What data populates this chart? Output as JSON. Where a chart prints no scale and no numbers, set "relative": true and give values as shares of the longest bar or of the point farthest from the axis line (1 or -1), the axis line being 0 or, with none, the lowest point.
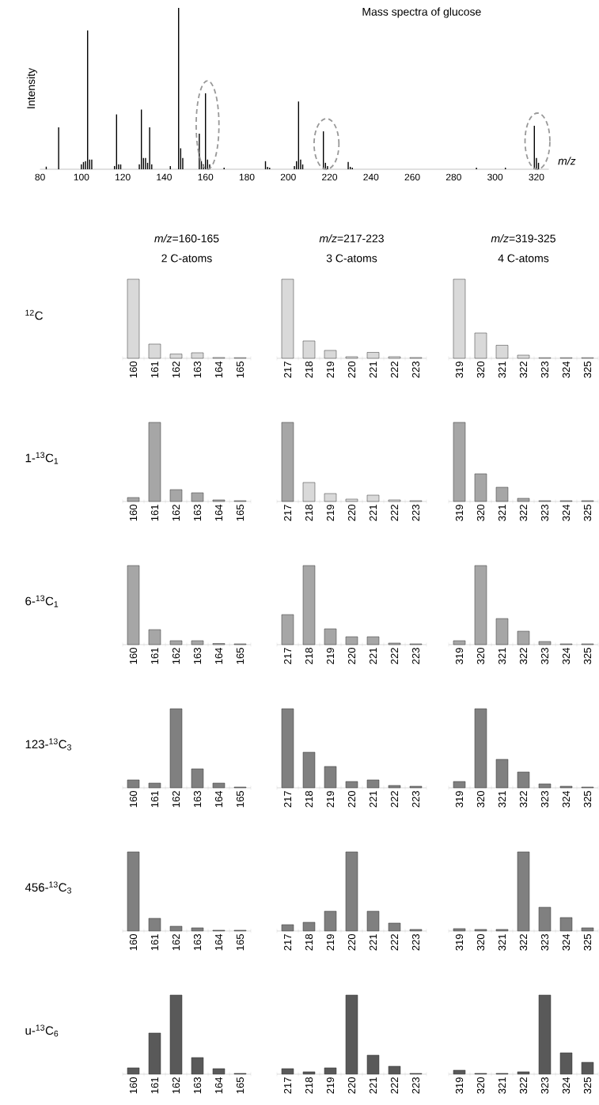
{
  "chart_data": [
    {
      "type": "bar",
      "title": "Mass spectra of glucose",
      "ylabel": "Intensity",
      "xlabel": "m/z",
      "relative": true,
      "color": "#000000",
      "x": [
        83,
        89,
        100,
        101,
        102,
        103,
        104,
        105,
        116,
        117,
        118,
        119,
        128,
        129,
        130,
        131,
        132,
        133,
        134,
        143,
        147,
        148,
        149,
        157,
        158,
        159,
        160,
        161,
        162,
        163,
        169,
        189,
        190,
        191,
        203,
        204,
        205,
        206,
        207,
        217,
        218,
        219,
        229,
        230,
        231,
        233,
        291,
        305,
        319,
        320,
        321
      ],
      "values": [
        0.016,
        0.26,
        0.03,
        0.045,
        0.05,
        0.86,
        0.06,
        0.06,
        0.02,
        0.34,
        0.03,
        0.03,
        0.03,
        0.37,
        0.07,
        0.07,
        0.04,
        0.26,
        0.03,
        0.02,
        1,
        0.13,
        0.07,
        0.22,
        0.05,
        0.03,
        0.47,
        0.06,
        0.03,
        null,
        0.01,
        0.05,
        0.015,
        0.01,
        0.02,
        0.05,
        0.42,
        0.06,
        0.03,
        0.235,
        0.04,
        0.02,
        0.045,
        0.015,
        0.01,
        null,
        0.01,
        0.01,
        0.27,
        0.07,
        0.04
      ],
      "xlim": [
        80,
        326
      ],
      "xticks": [
        80,
        100,
        120,
        140,
        160,
        180,
        200,
        220,
        240,
        260,
        280,
        300,
        320
      ]
    },
    {
      "type": "bar",
      "title": "*m/z*=160-165",
      "subtitle": "2 C-atoms",
      "ylabel": "$^{12}$C",
      "relative": true,
      "color": "#d9d9d9",
      "categories": [
        "160",
        "161",
        "162",
        "163",
        "164",
        "165"
      ],
      "values": [
        1,
        0.18,
        0.054,
        0.07,
        0.01,
        0.008
      ]
    },
    {
      "type": "bar",
      "title": "*m/z*=217-223",
      "subtitle": "3 C-atoms",
      "relative": true,
      "color": "#d9d9d9",
      "categories": [
        "217",
        "218",
        "219",
        "220",
        "221",
        "222",
        "223"
      ],
      "values": [
        1,
        0.22,
        0.1,
        0.02,
        0.075,
        0.02,
        0.01
      ]
    },
    {
      "type": "bar",
      "title": "*m/z*=319-325",
      "subtitle": "4 C-atoms",
      "relative": true,
      "color": "#d9d9d9",
      "categories": [
        "319",
        "320",
        "321",
        "322",
        "323",
        "324",
        "325"
      ],
      "values": [
        1,
        0.32,
        0.165,
        0.04,
        0.008,
        0.008,
        0.008
      ]
    },
    {
      "type": "bar",
      "ylabel": "1-$^{13}$C$_{1}$",
      "relative": true,
      "color": "#a6a6a6",
      "categories": [
        "160",
        "161",
        "162",
        "163",
        "164",
        "165"
      ],
      "values": [
        0.05,
        1,
        0.15,
        0.11,
        0.02,
        0.01
      ]
    },
    {
      "type": "bar",
      "relative": true,
      "colors": [
        "#a6a6a6",
        "#d9d9d9",
        "#d9d9d9",
        "#d9d9d9",
        "#d9d9d9",
        "#d9d9d9",
        "#d9d9d9"
      ],
      "categories": [
        "217",
        "218",
        "219",
        "220",
        "221",
        "222",
        "223"
      ],
      "values": [
        1,
        0.24,
        0.1,
        0.03,
        0.08,
        0.02,
        0.01
      ]
    },
    {
      "type": "bar",
      "relative": true,
      "color": "#a6a6a6",
      "categories": [
        "319",
        "320",
        "321",
        "322",
        "323",
        "324",
        "325"
      ],
      "values": [
        1,
        0.35,
        0.18,
        0.04,
        0.01,
        0.01,
        0.01
      ]
    },
    {
      "type": "bar",
      "ylabel": "6-$^{13}$C$_{1}$",
      "relative": true,
      "color": "#a6a6a6",
      "categories": [
        "160",
        "161",
        "162",
        "163",
        "164",
        "165"
      ],
      "values": [
        1,
        0.19,
        0.05,
        0.05,
        0.015,
        0.01
      ]
    },
    {
      "type": "bar",
      "relative": true,
      "color": "#a6a6a6",
      "categories": [
        "217",
        "218",
        "219",
        "220",
        "221",
        "222",
        "223"
      ],
      "values": [
        0.38,
        1,
        0.2,
        0.1,
        0.1,
        0.02,
        0.01
      ]
    },
    {
      "type": "bar",
      "relative": true,
      "color": "#a6a6a6",
      "categories": [
        "319",
        "320",
        "321",
        "322",
        "323",
        "324",
        "325"
      ],
      "values": [
        0.05,
        1,
        0.33,
        0.17,
        0.04,
        0.01,
        0.01
      ]
    },
    {
      "type": "bar",
      "ylabel": "123-$^{13}$C$_{3}$",
      "relative": true,
      "color": "#808080",
      "categories": [
        "160",
        "161",
        "162",
        "163",
        "164",
        "165"
      ],
      "values": [
        0.1,
        0.06,
        1,
        0.24,
        0.06,
        0.01
      ]
    },
    {
      "type": "bar",
      "relative": true,
      "color": "#808080",
      "categories": [
        "217",
        "218",
        "219",
        "220",
        "221",
        "222",
        "223"
      ],
      "values": [
        1,
        0.45,
        0.27,
        0.08,
        0.1,
        0.03,
        0.02
      ]
    },
    {
      "type": "bar",
      "relative": true,
      "color": "#808080",
      "categories": [
        "319",
        "320",
        "321",
        "322",
        "323",
        "324",
        "325"
      ],
      "values": [
        0.08,
        1,
        0.36,
        0.2,
        0.05,
        0.02,
        0.01
      ]
    },
    {
      "type": "bar",
      "ylabel": "456-$^{13}$C$_{3}$",
      "relative": true,
      "color": "#808080",
      "categories": [
        "160",
        "161",
        "162",
        "163",
        "164",
        "165"
      ],
      "values": [
        1,
        0.16,
        0.06,
        0.04,
        0.01,
        0.01
      ]
    },
    {
      "type": "bar",
      "relative": true,
      "color": "#808080",
      "categories": [
        "217",
        "218",
        "219",
        "220",
        "221",
        "222",
        "223"
      ],
      "values": [
        0.08,
        0.11,
        0.25,
        1,
        0.25,
        0.1,
        0.02
      ]
    },
    {
      "type": "bar",
      "relative": true,
      "color": "#808080",
      "categories": [
        "319",
        "320",
        "321",
        "322",
        "323",
        "324",
        "325"
      ],
      "values": [
        0.03,
        0.02,
        0.02,
        1,
        0.3,
        0.17,
        0.04
      ]
    },
    {
      "type": "bar",
      "ylabel": "u-$^{13}$C$_{6}$",
      "relative": true,
      "color": "#595959",
      "categories": [
        "160",
        "161",
        "162",
        "163",
        "164",
        "165"
      ],
      "values": [
        0.08,
        0.52,
        1,
        0.21,
        0.07,
        0.01
      ]
    },
    {
      "type": "bar",
      "relative": true,
      "color": "#595959",
      "categories": [
        "217",
        "218",
        "219",
        "220",
        "221",
        "222",
        "223"
      ],
      "values": [
        0.07,
        0.03,
        0.08,
        1,
        0.24,
        0.1,
        0.01
      ]
    },
    {
      "type": "bar",
      "relative": true,
      "color": "#595959",
      "categories": [
        "319",
        "320",
        "321",
        "322",
        "323",
        "324",
        "325"
      ],
      "values": [
        0.05,
        0.01,
        0.01,
        0.03,
        1,
        0.27,
        0.15
      ]
    }
  ]
}
